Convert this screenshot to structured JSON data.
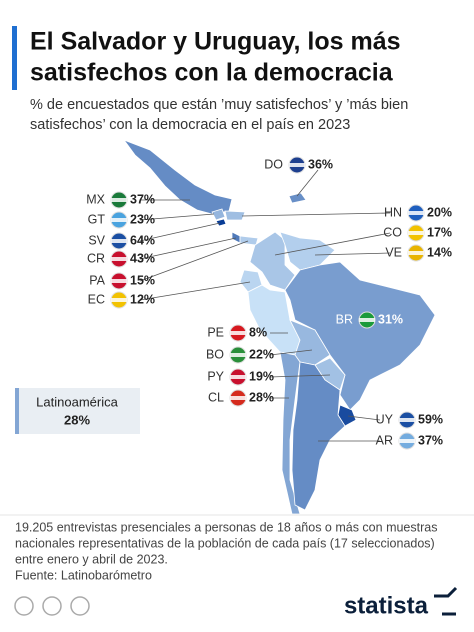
{
  "chart_data": {
    "type": "map",
    "title": [
      "El Salvador y Uruguay, los más",
      "satisfechos con la democracia"
    ],
    "subtitle": [
      "% de encuestados que están ’muy satisfechos’ y ’más bien",
      "satisfechos’ con la democracia en el país en 2023"
    ],
    "categories": [
      "DO",
      "MX",
      "GT",
      "SV",
      "CR",
      "PA",
      "EC",
      "HN",
      "CO",
      "VE",
      "BR",
      "PE",
      "BO",
      "PY",
      "CL",
      "UY",
      "AR"
    ],
    "values": [
      36,
      37,
      23,
      64,
      43,
      15,
      12,
      20,
      17,
      14,
      31,
      8,
      22,
      19,
      28,
      59,
      37
    ],
    "value_labels": [
      "36%",
      "37%",
      "23%",
      "64%",
      "43%",
      "15%",
      "12%",
      "20%",
      "17%",
      "14%",
      "31%",
      "8%",
      "22%",
      "19%",
      "28%",
      "59%",
      "37%"
    ],
    "summary": {
      "label": "Latinoamérica",
      "value": 28,
      "value_label": "28%"
    },
    "note": [
      "19.205 entrevistas presenciales a personas de 18 años o más con muestras",
      "nacionales representativas de la población de cada país (17 seleccionados)",
      "entre enero y abril de 2023."
    ],
    "source": "Fuente: Latinobarómetro",
    "brand": "statista"
  }
}
